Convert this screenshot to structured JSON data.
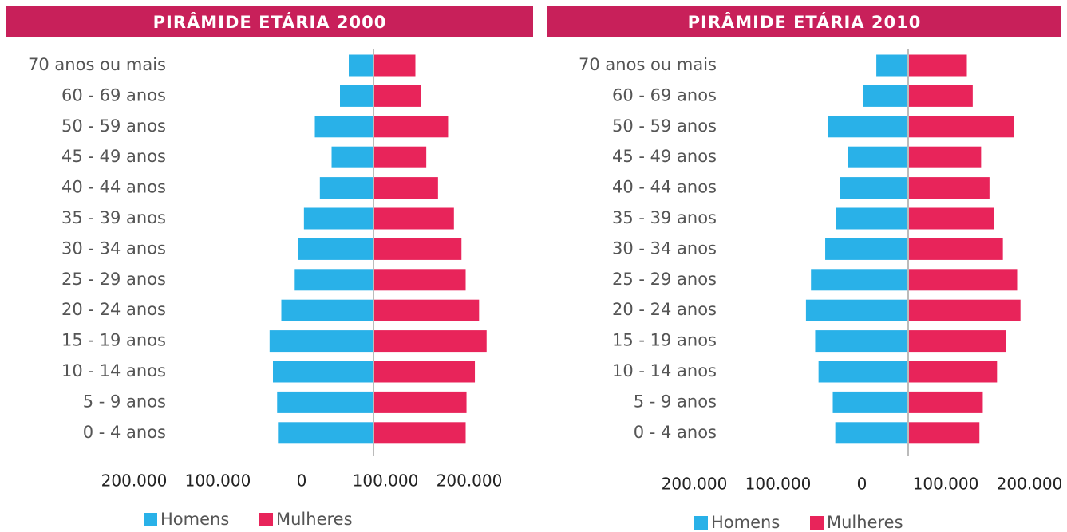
{
  "chart_data": [
    {
      "type": "bar",
      "title": "PIRÂMIDE ETÁRIA 2000",
      "categories": [
        "70 anos ou mais",
        "60 - 69 anos",
        "50 - 59 anos",
        "45 - 49 anos",
        "40 - 44 anos",
        "35 - 39 anos",
        "30 - 34 anos",
        "25 - 29 anos",
        "20 - 24 anos",
        "15 - 19 anos",
        "10 - 14 anos",
        "5 - 9 anos",
        "0 - 4 anos"
      ],
      "series": [
        {
          "name": "Homens",
          "color": "#29b1e8",
          "values": [
            29500,
            40000,
            70000,
            50000,
            64000,
            83000,
            90000,
            94000,
            110000,
            124000,
            120000,
            115000,
            114000
          ]
        },
        {
          "name": "Mulheres",
          "color": "#e8245a",
          "values": [
            50000,
            57000,
            89000,
            63000,
            77000,
            96000,
            105000,
            110000,
            126000,
            135000,
            121000,
            111000,
            110000
          ]
        }
      ],
      "xlim": [
        -200000,
        200000
      ],
      "xticks": [
        {
          "value": -200000,
          "label": "200.000"
        },
        {
          "value": -100000,
          "label": "100.000"
        },
        0,
        {
          "value": 100000,
          "label": "100.000"
        },
        {
          "value": 200000,
          "label": "200.000"
        }
      ]
    },
    {
      "type": "bar",
      "title": "PIRÂMIDE ETÁRIA 2010",
      "categories": [
        "70 anos ou mais",
        "60 - 69 anos",
        "50 - 59 anos",
        "45 - 49 anos",
        "40 - 44 anos",
        "35 - 39 anos",
        "30 - 34 anos",
        "25 - 29 anos",
        "20 - 24 anos",
        "15 - 19 anos",
        "10 - 14 anos",
        "5 - 9 anos",
        "0 - 4 anos"
      ],
      "series": [
        {
          "name": "Homens",
          "color": "#29b1e8",
          "values": [
            38000,
            54000,
            96000,
            72000,
            81000,
            86000,
            99000,
            116000,
            122000,
            111000,
            107000,
            90000,
            87000
          ]
        },
        {
          "name": "Mulheres",
          "color": "#e8245a",
          "values": [
            70000,
            77000,
            126000,
            87000,
            97000,
            102000,
            113000,
            130000,
            134000,
            117000,
            106000,
            89000,
            85000
          ]
        }
      ],
      "xlim": [
        -200000,
        200000
      ],
      "xticks": [
        {
          "value": -200000,
          "label": "200.000"
        },
        {
          "value": -100000,
          "label": "100.000"
        },
        0,
        {
          "value": 100000,
          "label": "100.000"
        },
        {
          "value": 200000,
          "label": "200.000"
        }
      ]
    }
  ]
}
